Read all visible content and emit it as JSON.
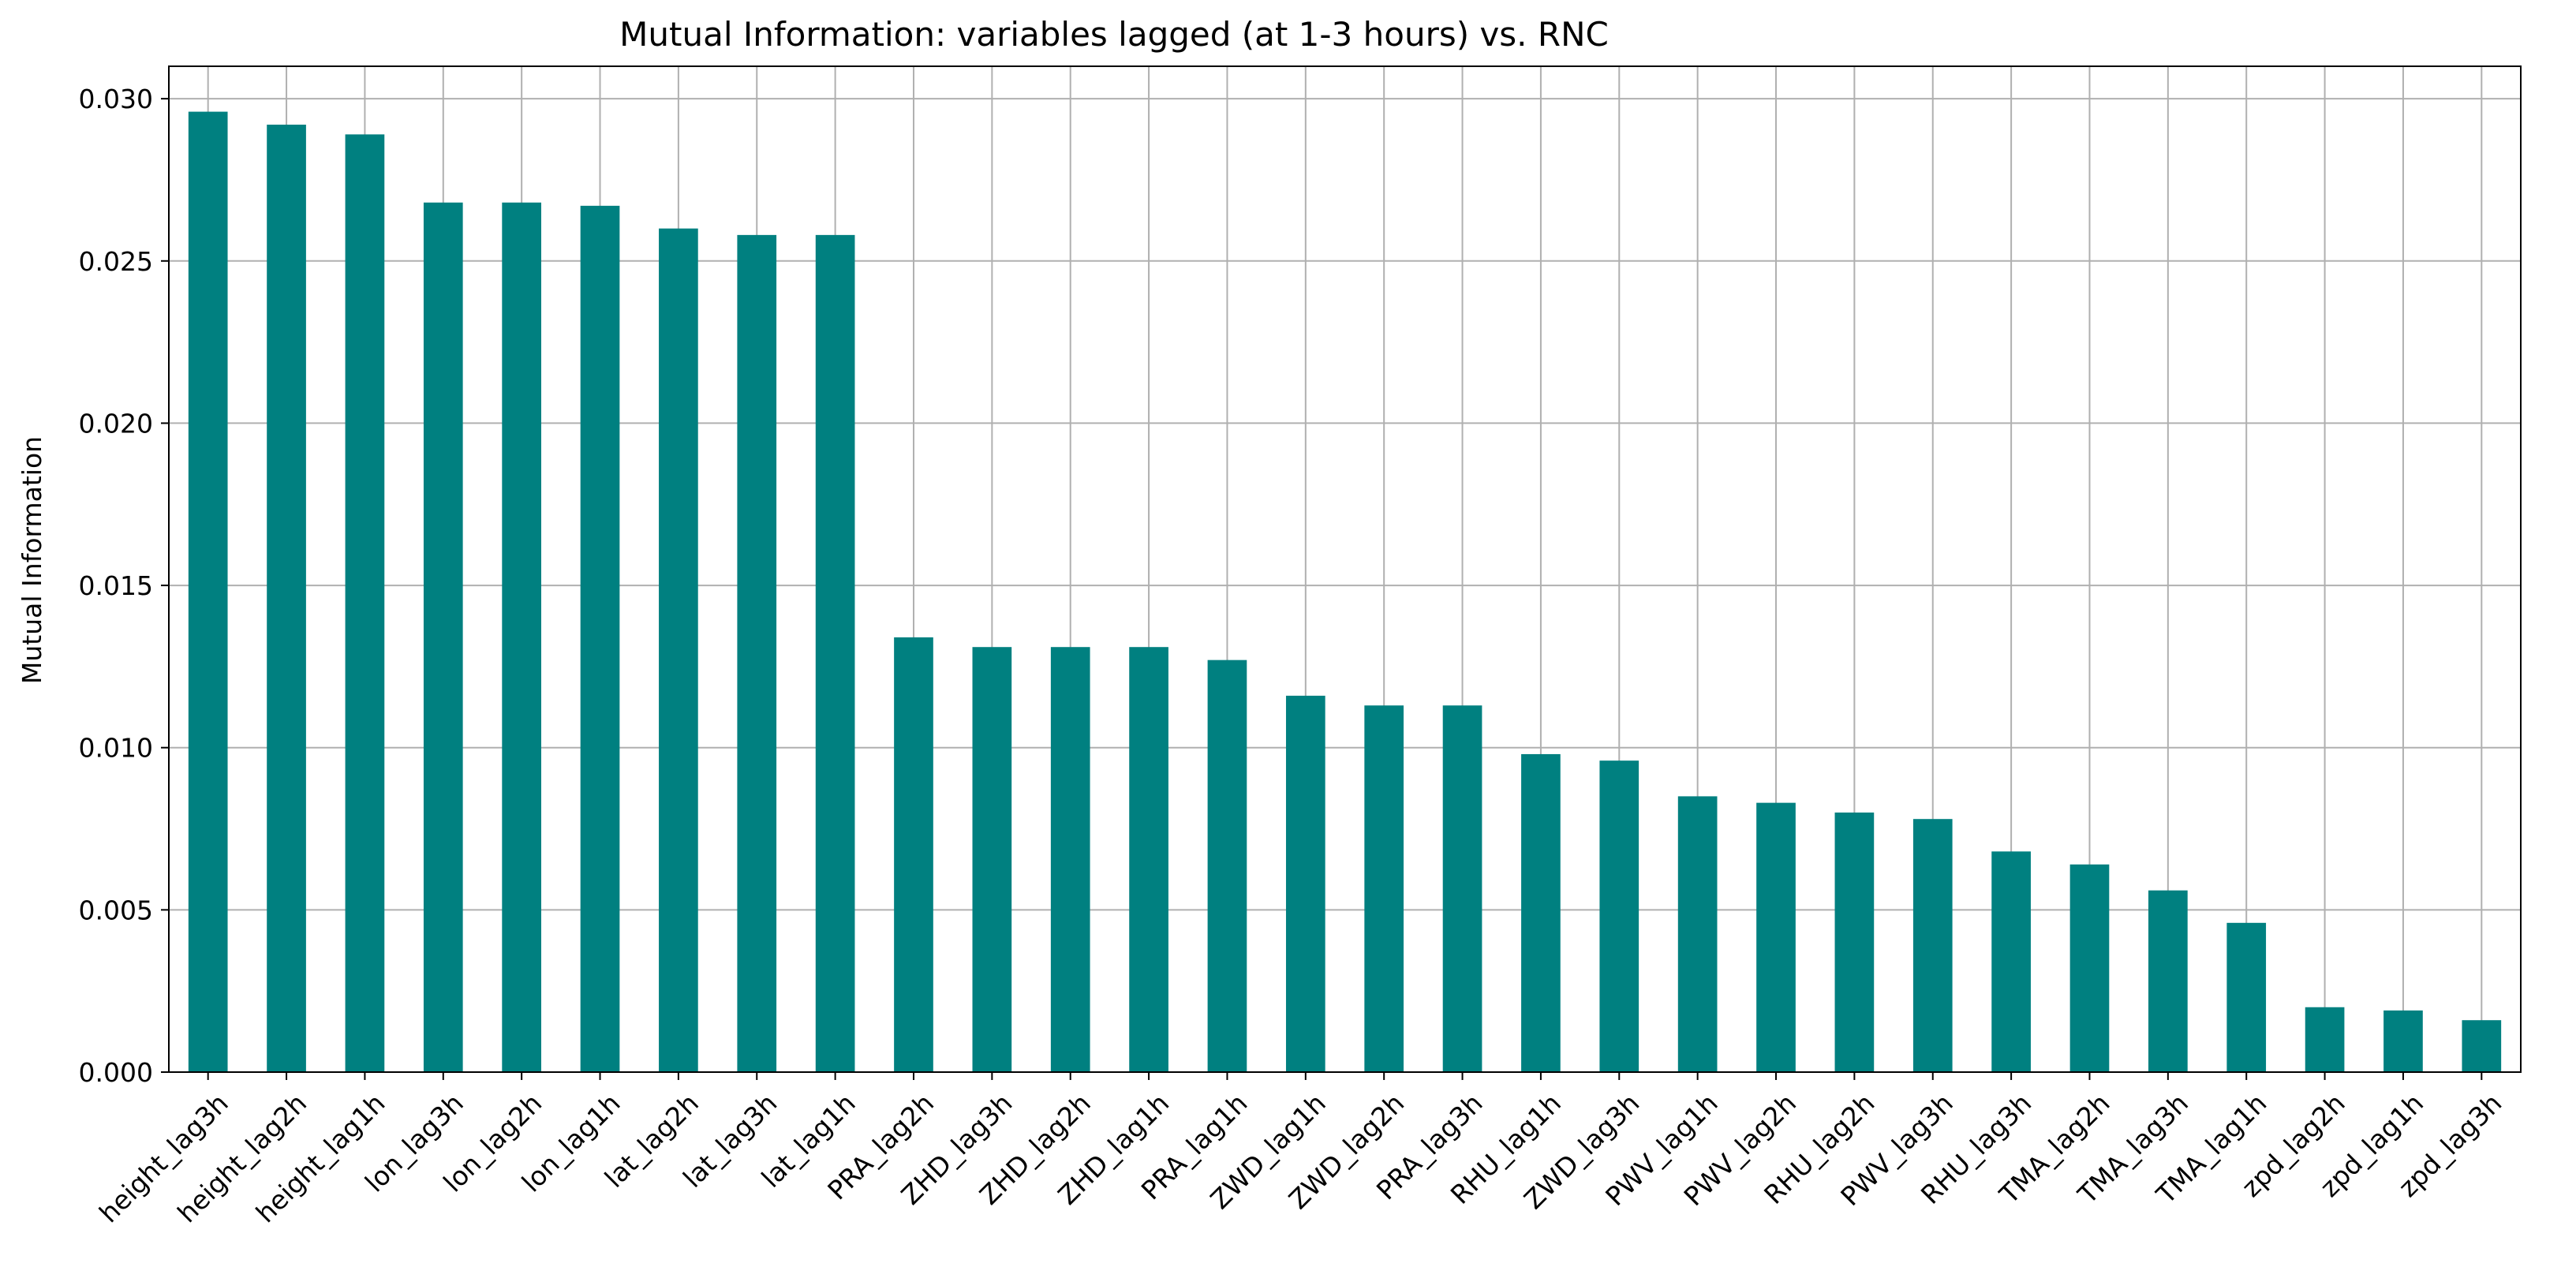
{
  "chart_data": {
    "type": "bar",
    "title": "Mutual Information: variables lagged (at 1-3 hours) vs. RNC",
    "xlabel": "",
    "ylabel": "Mutual Information",
    "ylim": [
      0,
      0.031
    ],
    "yticks": [
      "0.000",
      "0.005",
      "0.010",
      "0.015",
      "0.020",
      "0.025",
      "0.030"
    ],
    "ytick_values": [
      0,
      0.005,
      0.01,
      0.015,
      0.02,
      0.025,
      0.03
    ],
    "grid": true,
    "bar_color": "#008080",
    "categories": [
      "height_lag3h",
      "height_lag2h",
      "height_lag1h",
      "lon_lag3h",
      "lon_lag2h",
      "lon_lag1h",
      "lat_lag2h",
      "lat_lag3h",
      "lat_lag1h",
      "PRA_lag2h",
      "ZHD_lag3h",
      "ZHD_lag2h",
      "ZHD_lag1h",
      "PRA_lag1h",
      "ZWD_lag1h",
      "ZWD_lag2h",
      "PRA_lag3h",
      "RHU_lag1h",
      "ZWD_lag3h",
      "PWV_lag1h",
      "PWV_lag2h",
      "RHU_lag2h",
      "PWV_lag3h",
      "RHU_lag3h",
      "TMA_lag2h",
      "TMA_lag3h",
      "TMA_lag1h",
      "zpd_lag2h",
      "zpd_lag1h",
      "zpd_lag3h"
    ],
    "values": [
      0.0296,
      0.0292,
      0.0289,
      0.0268,
      0.0268,
      0.0267,
      0.026,
      0.0258,
      0.0258,
      0.0134,
      0.0131,
      0.0131,
      0.0131,
      0.0127,
      0.0116,
      0.0113,
      0.0113,
      0.0098,
      0.0096,
      0.0085,
      0.0083,
      0.008,
      0.0078,
      0.0068,
      0.0064,
      0.0056,
      0.0046,
      0.002,
      0.0019,
      0.0016
    ]
  }
}
